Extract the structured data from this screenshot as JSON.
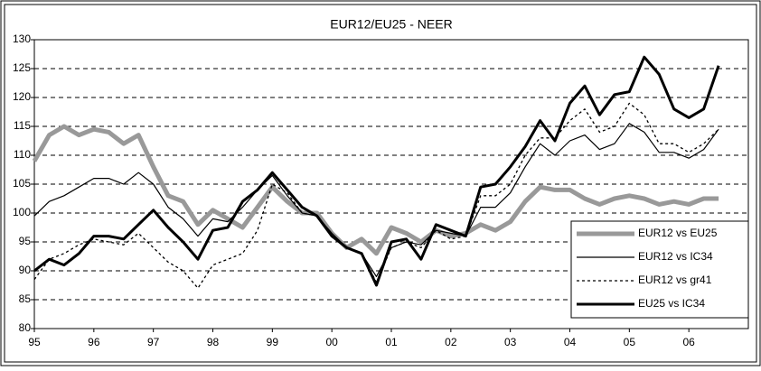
{
  "chart_data": {
    "type": "line",
    "title": "EUR12/EU25 - NEER",
    "x": [
      95,
      95.25,
      95.5,
      95.75,
      96,
      96.25,
      96.5,
      96.75,
      97,
      97.25,
      97.5,
      97.75,
      98,
      98.25,
      98.5,
      98.75,
      99,
      99.25,
      99.5,
      99.75,
      100,
      100.25,
      100.5,
      100.75,
      101,
      101.25,
      101.5,
      101.75,
      102,
      102.25,
      102.5,
      102.75,
      103,
      103.25,
      103.5,
      103.75,
      104,
      104.25,
      104.5,
      104.75,
      105,
      105.25,
      105.5,
      105.75,
      106,
      106.25,
      106.5
    ],
    "series": [
      {
        "name": "EUR12 vs EU25",
        "color": "#999999",
        "values": [
          109,
          113.5,
          115,
          113.5,
          114.5,
          114,
          112,
          113.5,
          108,
          103,
          102,
          98,
          100.5,
          99,
          97.5,
          101,
          104.5,
          102,
          100,
          100,
          96.5,
          94,
          95.5,
          93,
          97.5,
          96.5,
          95,
          97,
          96,
          96.5,
          98,
          97,
          98.5,
          102,
          104.5,
          104,
          104,
          102.5,
          101.5,
          102.5,
          103,
          102.5,
          101.5,
          102,
          101.5,
          102.5,
          102.5
        ]
      },
      {
        "name": "EUR12 vs IC34",
        "color": "#000000",
        "values": [
          99.5,
          102,
          103,
          104.5,
          106,
          106,
          105,
          107,
          105,
          101,
          99,
          96,
          99,
          98.5,
          101,
          104,
          106.5,
          103,
          100,
          99.5,
          96.5,
          94,
          93,
          89,
          94,
          95,
          94.5,
          97,
          96.5,
          96,
          101,
          101,
          103.5,
          108,
          112,
          110,
          112.5,
          113.5,
          111,
          112,
          115.5,
          114,
          110.5,
          110.5,
          109.5,
          111,
          114.5
        ]
      },
      {
        "name": "EUR12 vs gr41",
        "color": "#000000",
        "values": [
          88.5,
          92,
          93,
          94.5,
          95.5,
          95,
          94.5,
          96.5,
          94,
          91.5,
          90,
          87,
          91,
          92,
          93,
          97,
          105,
          103.5,
          100,
          99.5,
          96,
          94,
          93,
          88,
          94,
          95,
          94,
          97,
          95.5,
          96,
          103,
          103,
          105,
          110,
          113,
          113,
          116,
          118,
          114,
          115,
          119,
          117,
          112,
          112,
          110.5,
          112,
          114.5
        ]
      },
      {
        "name": "EU25 vs IC34",
        "color": "#000000",
        "values": [
          90,
          92,
          91,
          93,
          96,
          96,
          95.5,
          98,
          100.5,
          97.5,
          95,
          92,
          97,
          97.5,
          102,
          104,
          107,
          104,
          101,
          99.5,
          96,
          94,
          93,
          87.5,
          95,
          95.5,
          92,
          98,
          97,
          96,
          104.5,
          105,
          108,
          111.5,
          116,
          112.5,
          119,
          122,
          117,
          120.5,
          121,
          127,
          124,
          118,
          116.5,
          118,
          125.5
        ]
      }
    ],
    "xlim": [
      95,
      107
    ],
    "xticks": [
      95,
      96,
      97,
      98,
      99,
      {
        "value": 100,
        "label": "00"
      },
      {
        "value": 101,
        "label": "01"
      },
      {
        "value": 102,
        "label": "02"
      },
      {
        "value": 103,
        "label": "03"
      },
      {
        "value": 104,
        "label": "04"
      },
      {
        "value": 105,
        "label": "05"
      },
      {
        "value": 106,
        "label": "06"
      }
    ],
    "ylim": [
      80,
      130
    ],
    "yticks": [
      80,
      85,
      90,
      95,
      100,
      105,
      110,
      115,
      120,
      125,
      130
    ],
    "grid": true
  }
}
